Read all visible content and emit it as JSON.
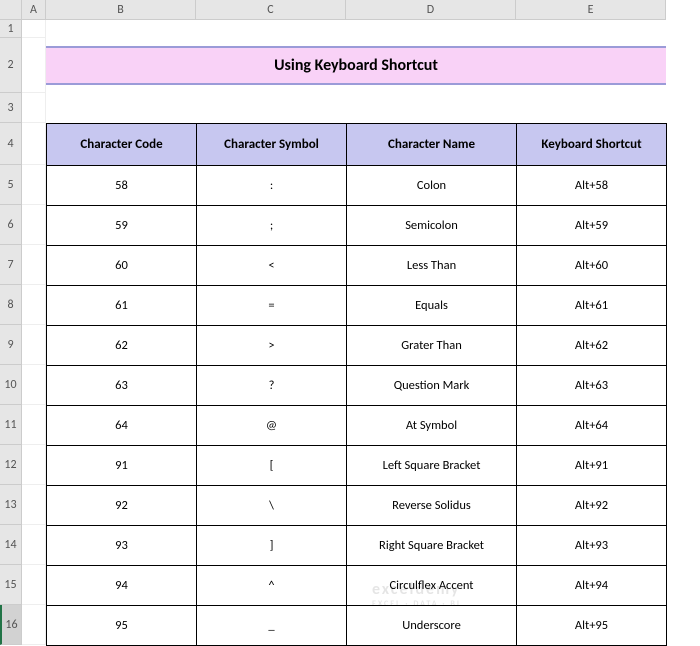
{
  "columns": [
    {
      "label": "A",
      "width": 24
    },
    {
      "label": "B",
      "width": 150
    },
    {
      "label": "C",
      "width": 150
    },
    {
      "label": "D",
      "width": 170
    },
    {
      "label": "E",
      "width": 150
    }
  ],
  "rows": [
    {
      "num": "1",
      "height": 18
    },
    {
      "num": "2",
      "height": 55
    },
    {
      "num": "3",
      "height": 30
    },
    {
      "num": "4",
      "height": 42
    },
    {
      "num": "5",
      "height": 40
    },
    {
      "num": "6",
      "height": 40
    },
    {
      "num": "7",
      "height": 40
    },
    {
      "num": "8",
      "height": 40
    },
    {
      "num": "9",
      "height": 40
    },
    {
      "num": "10",
      "height": 40
    },
    {
      "num": "11",
      "height": 40
    },
    {
      "num": "12",
      "height": 40
    },
    {
      "num": "13",
      "height": 40
    },
    {
      "num": "14",
      "height": 40
    },
    {
      "num": "15",
      "height": 40
    },
    {
      "num": "16",
      "height": 40,
      "selected": true
    }
  ],
  "title": "Using Keyboard Shortcut",
  "title_band": {
    "bg": "#f9d2f7",
    "border_color": "#9b9bd8",
    "fontsize": 16
  },
  "table": {
    "header_bg": "#c7c7f0",
    "border_color": "#000000",
    "fontsize_header": 13,
    "fontsize_cell": 12.5,
    "columns": [
      "Character Code",
      "Character Symbol",
      "Character Name",
      "Keyboard Shortcut"
    ],
    "rows": [
      [
        "58",
        ":",
        "Colon",
        "Alt+58"
      ],
      [
        "59",
        ";",
        "Semicolon",
        "Alt+59"
      ],
      [
        "60",
        "<",
        "Less Than",
        "Alt+60"
      ],
      [
        "61",
        "=",
        "Equals",
        "Alt+61"
      ],
      [
        "62",
        ">",
        "Grater Than",
        "Alt+62"
      ],
      [
        "63",
        "?",
        "Question Mark",
        "Alt+63"
      ],
      [
        "64",
        "@",
        "At Symbol",
        "Alt+64"
      ],
      [
        "91",
        "[",
        "Left Square Bracket",
        "Alt+91"
      ],
      [
        "92",
        "\\",
        "Reverse Solidus",
        "Alt+92"
      ],
      [
        "93",
        "]",
        "Right Square Bracket",
        "Alt+93"
      ],
      [
        "94",
        "^",
        "Circulflex Accent",
        "Alt+94"
      ],
      [
        "95",
        "_",
        "Underscore",
        "Alt+95"
      ]
    ]
  },
  "watermark": {
    "line1": "exceldemy",
    "line2": "EXCEL · DATA · BI"
  }
}
